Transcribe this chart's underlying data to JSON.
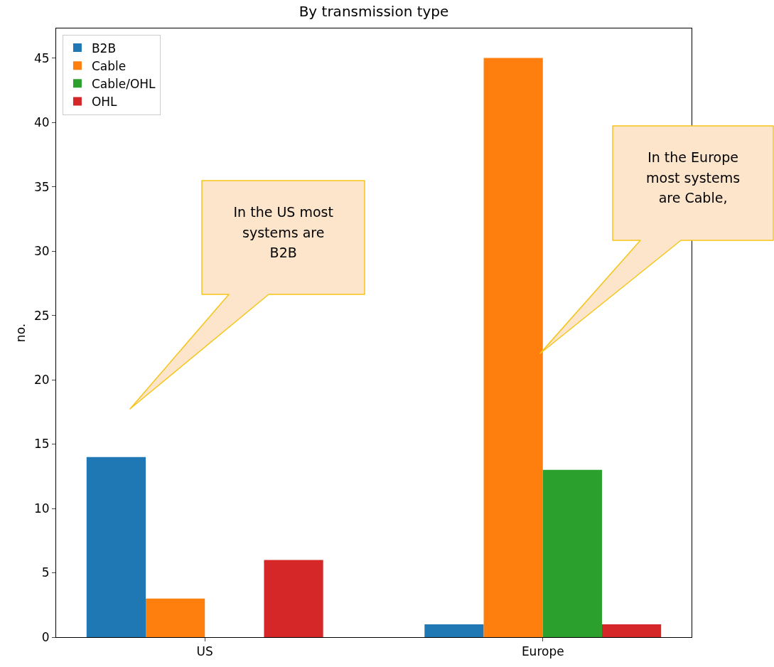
{
  "chart_data": {
    "type": "bar",
    "title": "By transmission type",
    "ylabel": "no.",
    "categories": [
      "US",
      "Europe"
    ],
    "series": [
      {
        "name": "B2B",
        "color": "#1f77b4",
        "values": [
          14,
          1
        ]
      },
      {
        "name": "Cable",
        "color": "#ff7f0e",
        "values": [
          3,
          45
        ]
      },
      {
        "name": "Cable/OHL",
        "color": "#2ca02c",
        "values": [
          0,
          13
        ]
      },
      {
        "name": "OHL",
        "color": "#d62728",
        "values": [
          6,
          1
        ]
      }
    ],
    "ylim": [
      0,
      47.3
    ],
    "yticks": [
      0,
      5,
      10,
      15,
      20,
      25,
      30,
      35,
      40,
      45
    ],
    "grid": false,
    "legend": "top left",
    "annotations": [
      "In the US most\nsystems are\nB2B",
      "In the Europe\nmost systems\nare Cable,"
    ]
  }
}
